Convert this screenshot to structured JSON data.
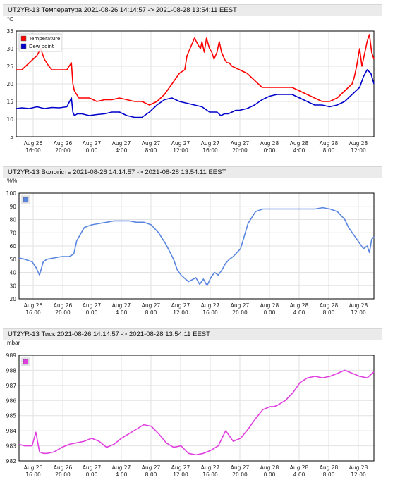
{
  "chart_data": [
    {
      "type": "line",
      "title": "UT2YR-13 Температура 2021-08-26 14:14:57 -> 2021-08-28 13:54:11 EEST",
      "unit": "°C",
      "xlabel": "",
      "ylabel": "°C",
      "x_ticks": [
        [
          "Aug 26",
          "16:00"
        ],
        [
          "Aug 26",
          "20:00"
        ],
        [
          "Aug 27",
          "0:00"
        ],
        [
          "Aug 27",
          "4:00"
        ],
        [
          "Aug 27",
          "8:00"
        ],
        [
          "Aug 27",
          "12:00"
        ],
        [
          "Aug 27",
          "16:00"
        ],
        [
          "Aug 27",
          "20:00"
        ],
        [
          "Aug 28",
          "0:00"
        ],
        [
          "Aug 28",
          "4:00"
        ],
        [
          "Aug 28",
          "8:00"
        ],
        [
          "Aug 28",
          "12:00"
        ]
      ],
      "y_ticks": [
        5,
        10,
        15,
        20,
        25,
        30,
        35
      ],
      "ylim": [
        5,
        35
      ],
      "xlim_hours": [
        14.25,
        61.9
      ],
      "grid": true,
      "legend_position": "top-left",
      "series": [
        {
          "name": "Temperature",
          "color": "#ff0000",
          "x": [
            14.25,
            15,
            15.5,
            16,
            16.5,
            17,
            17.5,
            18,
            18.3,
            18.6,
            19,
            20,
            21,
            21.6,
            21.8,
            22,
            22.3,
            22.6,
            23,
            24,
            25,
            26,
            27,
            28,
            29,
            30,
            31,
            32,
            33,
            34,
            35,
            36,
            36.7,
            37,
            38,
            38.5,
            38.8,
            39,
            39.3,
            39.6,
            40,
            40.3,
            40.6,
            41,
            41.3,
            41.6,
            42,
            42.3,
            42.6,
            43,
            44,
            45,
            46,
            47,
            48,
            49,
            50,
            51,
            52,
            53,
            54,
            55,
            56,
            57,
            58,
            58.5,
            59,
            59.3,
            59.6,
            60,
            60.3,
            60.6,
            61,
            61.3,
            61.6,
            61.9
          ],
          "y": [
            24,
            24,
            25,
            26,
            27,
            28,
            30,
            27,
            26,
            25,
            24,
            24,
            24,
            26,
            20,
            18,
            17,
            16,
            16,
            16,
            15,
            15.5,
            15.5,
            16,
            15.5,
            15,
            15,
            14,
            15,
            17,
            20,
            23,
            24,
            28,
            33,
            31,
            30,
            32,
            29,
            33,
            30,
            29,
            27,
            29,
            32,
            29,
            27,
            26,
            26,
            25,
            24,
            23,
            21,
            19,
            19,
            19,
            19,
            19,
            18,
            17,
            16,
            15,
            15,
            16,
            18,
            19,
            20,
            22,
            25,
            30,
            25,
            28,
            32,
            34,
            29,
            27
          ]
        },
        {
          "name": "Dew point",
          "color": "#0000cc",
          "x": [
            14.25,
            15,
            16,
            17,
            18,
            19,
            20,
            21,
            21.6,
            21.8,
            22,
            22.4,
            23,
            24,
            25,
            26,
            27,
            28,
            29,
            30,
            31,
            32,
            33,
            34,
            35,
            36,
            37,
            38,
            39,
            40,
            41,
            41.5,
            42,
            42.5,
            43,
            43.5,
            44,
            45,
            46,
            47,
            48,
            49,
            50,
            51,
            52,
            53,
            54,
            55,
            56,
            57,
            58,
            59,
            60,
            60.5,
            61,
            61.5,
            61.9
          ],
          "y": [
            13,
            13.2,
            13,
            13.5,
            13,
            13.3,
            13.2,
            13.5,
            16,
            12,
            11,
            11.5,
            11.5,
            11,
            11.3,
            11.5,
            12,
            12,
            11,
            10.5,
            10.5,
            12,
            14,
            15.5,
            16,
            15,
            14.5,
            14,
            13.5,
            12,
            12,
            11,
            11.5,
            11.5,
            12,
            12.5,
            12.5,
            13,
            14,
            15.5,
            16.5,
            17,
            17,
            17,
            16,
            15,
            14,
            14,
            13.5,
            14,
            15,
            17,
            19,
            22,
            24,
            23,
            20
          ]
        }
      ]
    },
    {
      "type": "line",
      "title": "UT2YR-13 Вологість 2021-08-26 14:14:57 -> 2021-08-28 13:54:11 EEST",
      "unit": "%%",
      "xlabel": "",
      "ylabel": "%%",
      "x_ticks": [
        [
          "Aug 26",
          "16:00"
        ],
        [
          "Aug 26",
          "20:00"
        ],
        [
          "Aug 27",
          "0:00"
        ],
        [
          "Aug 27",
          "4:00"
        ],
        [
          "Aug 27",
          "8:00"
        ],
        [
          "Aug 27",
          "12:00"
        ],
        [
          "Aug 27",
          "16:00"
        ],
        [
          "Aug 27",
          "20:00"
        ],
        [
          "Aug 28",
          "0:00"
        ],
        [
          "Aug 28",
          "4:00"
        ],
        [
          "Aug 28",
          "8:00"
        ],
        [
          "Aug 28",
          "12:00"
        ]
      ],
      "y_ticks": [
        20,
        30,
        40,
        50,
        60,
        70,
        80,
        90,
        100
      ],
      "ylim": [
        20,
        100
      ],
      "xlim_hours": [
        14.25,
        61.9
      ],
      "grid": true,
      "legend_position": "top-left",
      "series": [
        {
          "color": "#5a86e0",
          "x": [
            14.25,
            15,
            16,
            16.5,
            17,
            17.5,
            18,
            19,
            20,
            21,
            21.6,
            22,
            23,
            24,
            25,
            26,
            27,
            28,
            29,
            30,
            31,
            32,
            33,
            34,
            35,
            35.5,
            36,
            37,
            38,
            38.5,
            39,
            39.5,
            40,
            40.5,
            41,
            41.5,
            42,
            42.5,
            43,
            44,
            45,
            46,
            47,
            48,
            49,
            50,
            51,
            52,
            53,
            54,
            55,
            56,
            57,
            58,
            58.5,
            59,
            59.5,
            60,
            60.5,
            61,
            61.3,
            61.6,
            61.9
          ],
          "y": [
            51,
            50,
            48,
            44,
            38,
            48,
            50,
            51,
            52,
            52,
            54,
            64,
            74,
            76,
            77,
            78,
            79,
            79,
            79,
            78,
            78,
            76,
            70,
            61,
            50,
            42,
            38,
            33,
            36,
            31,
            35,
            30,
            36,
            40,
            38,
            42,
            47,
            50,
            52,
            58,
            77,
            86,
            88,
            88,
            88,
            88,
            88,
            88,
            88,
            88,
            89,
            88,
            86,
            80,
            74,
            70,
            66,
            62,
            58,
            60,
            55,
            65,
            67
          ]
        }
      ]
    },
    {
      "type": "line",
      "title": "UT2YR-13 Тиск 2021-08-26 14:14:57 -> 2021-08-28 13:54:11 EEST",
      "unit": "mbar",
      "xlabel": "",
      "ylabel": "mbar",
      "x_ticks": [
        [
          "Aug 26",
          "16:00"
        ],
        [
          "Aug 26",
          "20:00"
        ],
        [
          "Aug 27",
          "0:00"
        ],
        [
          "Aug 27",
          "4:00"
        ],
        [
          "Aug 27",
          "8:00"
        ],
        [
          "Aug 27",
          "12:00"
        ],
        [
          "Aug 27",
          "16:00"
        ],
        [
          "Aug 27",
          "20:00"
        ],
        [
          "Aug 28",
          "0:00"
        ],
        [
          "Aug 28",
          "4:00"
        ],
        [
          "Aug 28",
          "8:00"
        ],
        [
          "Aug 28",
          "12:00"
        ]
      ],
      "y_ticks": [
        982,
        983,
        984,
        985,
        986,
        987,
        988,
        989
      ],
      "ylim": [
        982,
        989
      ],
      "xlim_hours": [
        14.25,
        61.9
      ],
      "grid": true,
      "legend_position": "top-left",
      "series": [
        {
          "color": "#e040e0",
          "x": [
            14.25,
            15,
            16,
            16.5,
            17,
            17.5,
            18,
            19,
            20,
            21,
            22,
            23,
            24,
            25,
            26,
            27,
            28,
            29,
            30,
            31,
            32,
            33,
            34,
            35,
            36,
            37,
            38,
            39,
            40,
            41,
            42,
            43,
            44,
            45,
            46,
            47,
            48,
            48.5,
            49,
            50,
            51,
            52,
            53,
            54,
            55,
            56,
            57,
            58,
            59,
            60,
            61,
            61.9
          ],
          "y": [
            983.1,
            983,
            983,
            983.9,
            982.6,
            982.5,
            982.5,
            982.6,
            982.9,
            983.1,
            983.2,
            983.3,
            983.5,
            983.3,
            982.9,
            983.1,
            983.5,
            983.8,
            984.1,
            984.4,
            984.3,
            983.8,
            983.2,
            982.9,
            983,
            982.5,
            982.4,
            982.5,
            982.7,
            983,
            984,
            983.3,
            983.5,
            984.1,
            984.8,
            985.4,
            985.6,
            985.6,
            985.7,
            986,
            986.5,
            987.2,
            987.5,
            987.6,
            987.5,
            987.6,
            987.8,
            988.0,
            987.8,
            987.6,
            987.5,
            987.9
          ]
        }
      ]
    }
  ]
}
